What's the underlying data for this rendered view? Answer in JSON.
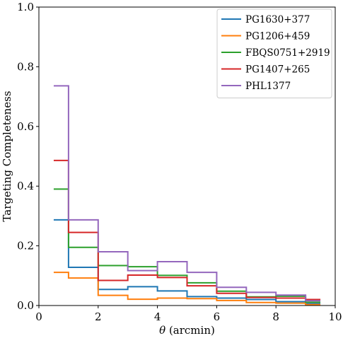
{
  "chart_data": {
    "type": "line",
    "drawstyle": "steps",
    "xlabel_symbol": "θ",
    "xlabel_unit": " (arcmin)",
    "ylabel": "Targeting Completeness",
    "xlim": [
      0,
      10
    ],
    "ylim": [
      0,
      1.0
    ],
    "xticks": [
      "0",
      "2",
      "4",
      "6",
      "8",
      "10"
    ],
    "yticks": [
      "0.0",
      "0.2",
      "0.4",
      "0.6",
      "0.8",
      "1.0"
    ],
    "grid": false,
    "legend_position": "top-right",
    "bin_edges": [
      0.5,
      1,
      2,
      3,
      4,
      5,
      6,
      7,
      8,
      9,
      9.5
    ],
    "series": [
      {
        "name": "PG1630+377",
        "color": "#1f77b4",
        "values": [
          0.287,
          0.128,
          0.054,
          0.063,
          0.049,
          0.03,
          0.025,
          0.02,
          0.013,
          0.006
        ]
      },
      {
        "name": "PG1206+459",
        "color": "#ff7f0e",
        "values": [
          0.111,
          0.092,
          0.034,
          0.021,
          0.025,
          0.023,
          0.017,
          0.01,
          0.008,
          0.003
        ]
      },
      {
        "name": "FBQS0751+2919",
        "color": "#2ca02c",
        "values": [
          0.39,
          0.195,
          0.134,
          0.13,
          0.101,
          0.076,
          0.048,
          0.029,
          0.031,
          0.011
        ]
      },
      {
        "name": "PG1407+265",
        "color": "#d62728",
        "values": [
          0.486,
          0.245,
          0.084,
          0.102,
          0.094,
          0.066,
          0.041,
          0.027,
          0.025,
          0.02
        ]
      },
      {
        "name": "PHL1377",
        "color": "#9467bd",
        "values": [
          0.736,
          0.287,
          0.18,
          0.117,
          0.147,
          0.111,
          0.061,
          0.044,
          0.035,
          0.016
        ]
      }
    ]
  }
}
